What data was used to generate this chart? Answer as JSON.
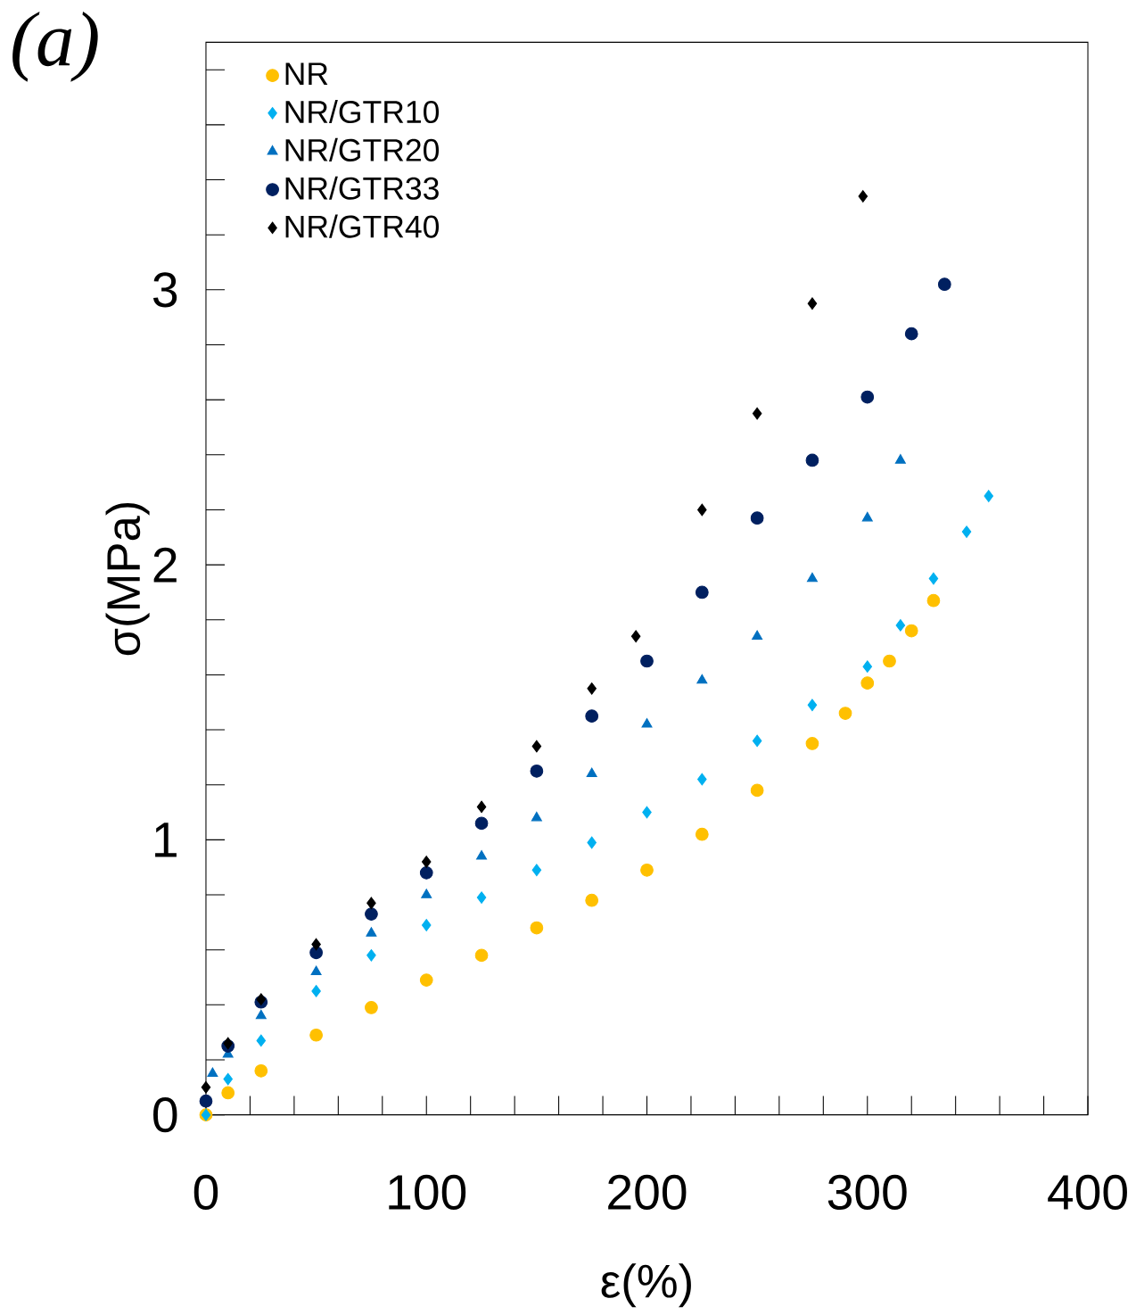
{
  "chart_data": {
    "type": "scatter",
    "title": "*(a)*",
    "xlabel": "ε(%)",
    "ylabel": "σ(MPa)",
    "xlim": [
      0,
      400
    ],
    "ylim": [
      0,
      3.9
    ],
    "xticks": [
      0,
      {
        "value": 20,
        "label": null
      },
      {
        "value": 40,
        "label": null
      },
      {
        "value": 60,
        "label": null
      },
      {
        "value": 80,
        "label": null
      },
      100,
      {
        "value": 120,
        "label": null
      },
      {
        "value": 140,
        "label": null
      },
      {
        "value": 160,
        "label": null
      },
      {
        "value": 180,
        "label": null
      },
      200,
      {
        "value": 220,
        "label": null
      },
      {
        "value": 240,
        "label": null
      },
      {
        "value": 260,
        "label": null
      },
      {
        "value": 280,
        "label": null
      },
      300,
      {
        "value": 320,
        "label": null
      },
      {
        "value": 340,
        "label": null
      },
      {
        "value": 360,
        "label": null
      },
      {
        "value": 380,
        "label": null
      },
      400
    ],
    "yticks": [
      0,
      {
        "value": 0.2,
        "label": null
      },
      {
        "value": 0.4,
        "label": null
      },
      {
        "value": 0.6,
        "label": null
      },
      {
        "value": 0.8,
        "label": null
      },
      1,
      {
        "value": 1.2,
        "label": null
      },
      {
        "value": 1.4,
        "label": null
      },
      {
        "value": 1.6,
        "label": null
      },
      {
        "value": 1.8,
        "label": null
      },
      2,
      {
        "value": 2.2,
        "label": null
      },
      {
        "value": 2.4,
        "label": null
      },
      {
        "value": 2.6,
        "label": null
      },
      {
        "value": 2.8,
        "label": null
      },
      3,
      {
        "value": 3.2,
        "label": null
      },
      {
        "value": 3.4,
        "label": null
      },
      {
        "value": 3.6,
        "label": null
      },
      {
        "value": 3.8,
        "label": null
      }
    ],
    "legend": "top left",
    "grid": false,
    "series": [
      {
        "name": "NR",
        "color": "#ffc000",
        "marker": "circle",
        "x": [
          0,
          10,
          25,
          50,
          75,
          100,
          125,
          150,
          175,
          200,
          225,
          250,
          275,
          290,
          300,
          310,
          320,
          330
        ],
        "values": [
          0,
          0.08,
          0.16,
          0.29,
          0.39,
          0.49,
          0.58,
          0.68,
          0.78,
          0.89,
          1.02,
          1.18,
          1.35,
          1.46,
          1.57,
          1.65,
          1.76,
          1.87
        ]
      },
      {
        "name": "NR/GTR10",
        "color": "#00b0f0",
        "marker": "diamond",
        "x": [
          0,
          10,
          25,
          50,
          75,
          100,
          125,
          150,
          175,
          200,
          225,
          250,
          275,
          300,
          315,
          330,
          345,
          355
        ],
        "values": [
          0,
          0.13,
          0.27,
          0.45,
          0.58,
          0.69,
          0.79,
          0.89,
          0.99,
          1.1,
          1.22,
          1.36,
          1.49,
          1.63,
          1.78,
          1.95,
          2.12,
          2.25
        ]
      },
      {
        "name": "NR/GTR20",
        "color": "#0070c0",
        "marker": "triangle",
        "x": [
          3,
          10,
          25,
          50,
          75,
          100,
          125,
          150,
          175,
          200,
          225,
          250,
          275,
          300,
          315
        ],
        "values": [
          0.15,
          0.22,
          0.36,
          0.52,
          0.66,
          0.8,
          0.94,
          1.08,
          1.24,
          1.42,
          1.58,
          1.74,
          1.95,
          2.17,
          2.38
        ]
      },
      {
        "name": "NR/GTR33",
        "color": "#002060",
        "marker": "circle",
        "x": [
          0,
          10,
          25,
          50,
          75,
          100,
          125,
          150,
          175,
          200,
          225,
          250,
          275,
          300,
          320,
          335
        ],
        "values": [
          0.05,
          0.25,
          0.41,
          0.59,
          0.73,
          0.88,
          1.06,
          1.25,
          1.45,
          1.65,
          1.9,
          2.17,
          2.38,
          2.61,
          2.84,
          3.02
        ]
      },
      {
        "name": "NR/GTR40",
        "color": "#000000",
        "marker": "diamond",
        "x": [
          0,
          10,
          25,
          50,
          75,
          100,
          125,
          150,
          175,
          195,
          225,
          250,
          275,
          298
        ],
        "values": [
          0.1,
          0.26,
          0.42,
          0.62,
          0.77,
          0.92,
          1.12,
          1.34,
          1.55,
          1.74,
          2.2,
          2.55,
          2.95,
          3.34
        ]
      }
    ]
  }
}
